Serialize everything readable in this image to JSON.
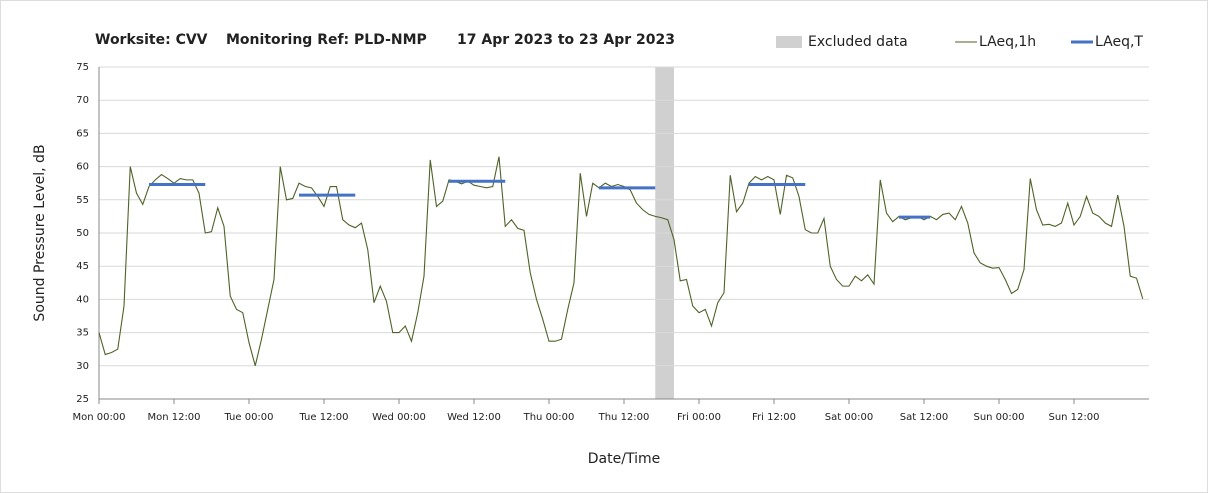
{
  "chart_data": {
    "type": "line",
    "title_parts": [
      "Worksite: CVV",
      "Monitoring Ref: PLD-NMP",
      "17 Apr 2023 to 23 Apr 2023"
    ],
    "x_label": "Date/Time",
    "y_label": "Sound Pressure Level, dB",
    "excluded": {
      "name": "Excluded data",
      "color": "#d0d0d0",
      "range": [
        89,
        92
      ]
    },
    "x": [
      0,
      1,
      2,
      3,
      4,
      5,
      6,
      7,
      8,
      9,
      10,
      11,
      12,
      13,
      14,
      15,
      16,
      17,
      18,
      19,
      20,
      21,
      22,
      23,
      24,
      25,
      26,
      27,
      28,
      29,
      30,
      31,
      32,
      33,
      34,
      35,
      36,
      37,
      38,
      39,
      40,
      41,
      42,
      43,
      44,
      45,
      46,
      47,
      48,
      49,
      50,
      51,
      52,
      53,
      54,
      55,
      56,
      57,
      58,
      59,
      60,
      61,
      62,
      63,
      64,
      65,
      66,
      67,
      68,
      69,
      70,
      71,
      72,
      73,
      74,
      75,
      76,
      77,
      78,
      79,
      80,
      81,
      82,
      83,
      84,
      85,
      86,
      87,
      88,
      89,
      90,
      91,
      92,
      93,
      94,
      95,
      96,
      97,
      98,
      99,
      100,
      101,
      102,
      103,
      104,
      105,
      106,
      107,
      108,
      109,
      110,
      111,
      112,
      113,
      114,
      115,
      116,
      117,
      118,
      119,
      120,
      121,
      122,
      123,
      124,
      125,
      126,
      127,
      128,
      129,
      130,
      131,
      132,
      133,
      134,
      135,
      136,
      137,
      138,
      139,
      140,
      141,
      142,
      143,
      144,
      145,
      146,
      147,
      148,
      149,
      150,
      151,
      152,
      153,
      154,
      155,
      156,
      157,
      158,
      159,
      160,
      161,
      162,
      163,
      164,
      165,
      166,
      167
    ],
    "series": [
      {
        "name": "LAeq,1h",
        "color": "#4f6228",
        "values": [
          35,
          31.7,
          32,
          32.5,
          39,
          60,
          56,
          54.3,
          57,
          58,
          58.8,
          58.2,
          57.5,
          58.2,
          58,
          58,
          56,
          50,
          50.2,
          53.8,
          51,
          40.5,
          38.5,
          38,
          33.5,
          30,
          34,
          38.5,
          43,
          60,
          55,
          55.2,
          57.5,
          57,
          56.8,
          55.5,
          54,
          57,
          57,
          52,
          51.2,
          50.8,
          51.5,
          47.5,
          39.5,
          42,
          39.7,
          35,
          35,
          36,
          33.7,
          38,
          43.5,
          61,
          54,
          54.8,
          58,
          57.8,
          57.4,
          57.8,
          57.2,
          57,
          56.8,
          57,
          61.5,
          51,
          52,
          50.7,
          50.4,
          44,
          40,
          37,
          33.7,
          33.7,
          34,
          38.5,
          42.5,
          59,
          52.5,
          57.5,
          56.8,
          57.5,
          57,
          57.3,
          57,
          56.5,
          54.5,
          53.5,
          52.8,
          52.5,
          52.3,
          52,
          49,
          42.8,
          43,
          39,
          38,
          38.5,
          36,
          39.5,
          41,
          58.7,
          53.2,
          54.5,
          57.5,
          58.5,
          58,
          58.5,
          58,
          52.8,
          58.7,
          58.3,
          55.5,
          50.5,
          50,
          50,
          52.2,
          45,
          43,
          42,
          42,
          43.5,
          42.8,
          43.7,
          42.3,
          58,
          53,
          51.7,
          52.5,
          52,
          52.3,
          52.5,
          52,
          52.5,
          52,
          52.8,
          53,
          52,
          54,
          51.5,
          47,
          45.5,
          45,
          44.7,
          44.8,
          43,
          40.9,
          41.5,
          44.5,
          58.2,
          53.5,
          51.2,
          51.3,
          51,
          51.5,
          54.5,
          51.2,
          52.5,
          55.5,
          53,
          52.5,
          51.5,
          51,
          55.7,
          51,
          43.5,
          43.2,
          40.1
        ]
      },
      {
        "name": "LAeq,T",
        "color": "#4472c4",
        "x": [
          8,
          17,
          24,
          32,
          41,
          48,
          56,
          65,
          72,
          80,
          89,
          96,
          104,
          113,
          120,
          128,
          133
        ],
        "values": [
          57.3,
          57.3,
          null,
          55.7,
          55.7,
          null,
          57.8,
          57.8,
          null,
          56.8,
          56.8,
          null,
          57.3,
          57.3,
          null,
          52.4,
          52.4
        ]
      }
    ],
    "xlim": [
      0,
      168
    ],
    "xticks": [
      {
        "value": 0,
        "label": "Mon 00:00"
      },
      {
        "value": 12,
        "label": "Mon 12:00"
      },
      {
        "value": 24,
        "label": "Tue 00:00"
      },
      {
        "value": 36,
        "label": "Tue 12:00"
      },
      {
        "value": 48,
        "label": "Wed 00:00"
      },
      {
        "value": 60,
        "label": "Wed 12:00"
      },
      {
        "value": 72,
        "label": "Thu 00:00"
      },
      {
        "value": 84,
        "label": "Thu 12:00"
      },
      {
        "value": 96,
        "label": "Fri 00:00"
      },
      {
        "value": 108,
        "label": "Fri 12:00"
      },
      {
        "value": 120,
        "label": "Sat 00:00"
      },
      {
        "value": 132,
        "label": "Sat 12:00"
      },
      {
        "value": 144,
        "label": "Sun 00:00"
      },
      {
        "value": 156,
        "label": "Sun 12:00"
      }
    ],
    "ylim": [
      25,
      75
    ],
    "yticks": [
      25,
      30,
      35,
      40,
      45,
      50,
      55,
      60,
      65,
      70,
      75
    ],
    "grid": true
  }
}
